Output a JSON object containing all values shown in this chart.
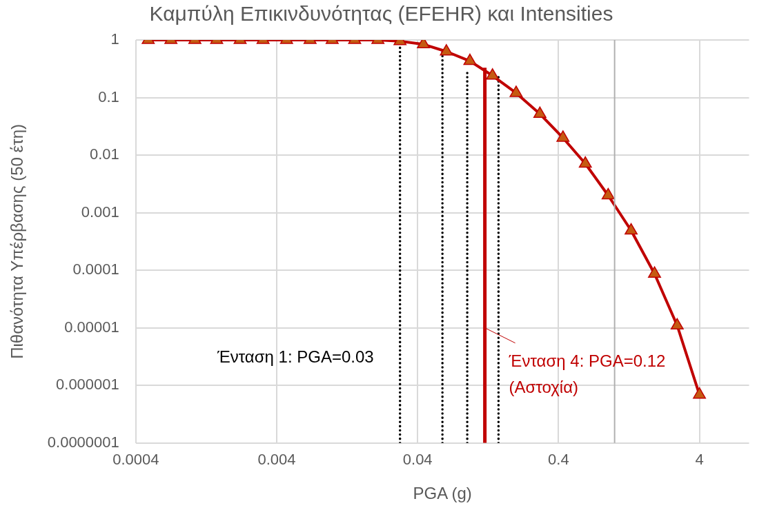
{
  "chart_data": {
    "type": "line",
    "title": "Καμπύλη Επικινδυνότητας (EFEHR) και Intensities",
    "xlabel": "PGA (g)",
    "ylabel": "Πιθανότητα Υπέρβασης (50 έτη)",
    "log": "xy",
    "grid": true,
    "legend": false,
    "xlim": [
      0.0004,
      9
    ],
    "xticks": [
      0.0004,
      0.004,
      0.04,
      0.4,
      4
    ],
    "ylim": [
      1e-07,
      1
    ],
    "yticks": [
      1,
      0.1,
      0.01,
      0.001,
      0.0001,
      {
        "value": 1e-05,
        "label": "0.00001"
      },
      {
        "value": 1e-06,
        "label": "0.000001"
      },
      {
        "value": 1e-07,
        "label": "0.0000001"
      }
    ],
    "series": [
      {
        "color": "#c00000",
        "marker": "triangle",
        "line_style": "solid",
        "colors": [
          "#c55a11",
          "#c55a11",
          "#c55a11",
          "#c55a11",
          "#c55a11",
          "#c55a11",
          "#c55a11",
          "#c55a11",
          "#c55a11",
          "#c55a11",
          "#c55a11",
          "#c55a11",
          "#c55a11",
          "#c55a11",
          "#c55a11",
          "#c55a11",
          "#c55a11",
          "#c55a11",
          "#c55a11",
          "#c55a11",
          "#c55a11",
          "#c55a11",
          "#c55a11",
          "#c55a11",
          "#c55a11"
        ],
        "x": [
          0.00049,
          0.00071,
          0.00105,
          0.0015,
          0.0022,
          0.0032,
          0.0047,
          0.0069,
          0.0099,
          0.0143,
          0.0209,
          0.03,
          0.044,
          0.064,
          0.094,
          0.136,
          0.2,
          0.295,
          0.43,
          0.62,
          0.9,
          1.31,
          1.92,
          2.78,
          4
        ],
        "values": [
          1,
          1,
          1,
          1,
          1,
          1,
          1,
          1,
          1,
          1,
          1,
          0.95,
          0.84,
          0.63,
          0.43,
          0.24,
          0.12,
          0.052,
          0.02,
          0.0071,
          0.002,
          0.00049,
          8.7e-05,
          1.1e-05,
          6.9e-07
        ]
      },
      {
        "color": "#000000",
        "marker": "none",
        "line_style": "dotted",
        "x": [
          0.03,
          0.03
        ],
        "values": [
          1e-07,
          0.95
        ]
      },
      {
        "color": "#000000",
        "marker": "none",
        "line_style": "dotted",
        "x": [
          0.06,
          0.06
        ],
        "values": [
          1e-07,
          0.7
        ]
      },
      {
        "color": "#000000",
        "marker": "none",
        "line_style": "dotted",
        "x": [
          0.09,
          0.09
        ],
        "values": [
          1e-07,
          0.3
        ]
      },
      {
        "color": "#000000",
        "marker": "none",
        "line_style": "dotted",
        "x": [
          0.15,
          0.15
        ],
        "values": [
          1e-07,
          0.23
        ]
      },
      {
        "color": "#c00000",
        "marker": "none",
        "line_style": "solid",
        "x": [
          0.12,
          0.12
        ],
        "values": [
          1e-07,
          0.33
        ]
      }
    ],
    "ref_lines": [
      {
        "axis": "x",
        "value": 1,
        "color": "#b0b0b0"
      }
    ],
    "annotations": [
      {
        "text": "Ένταση 1: PGA=0.03",
        "x": 0.03,
        "y": 3e-06
      },
      {
        "text": "Ένταση 4: PGA=0.12\n(Αστοχία)",
        "x": 0.12,
        "y": 1e-05
      }
    ]
  }
}
